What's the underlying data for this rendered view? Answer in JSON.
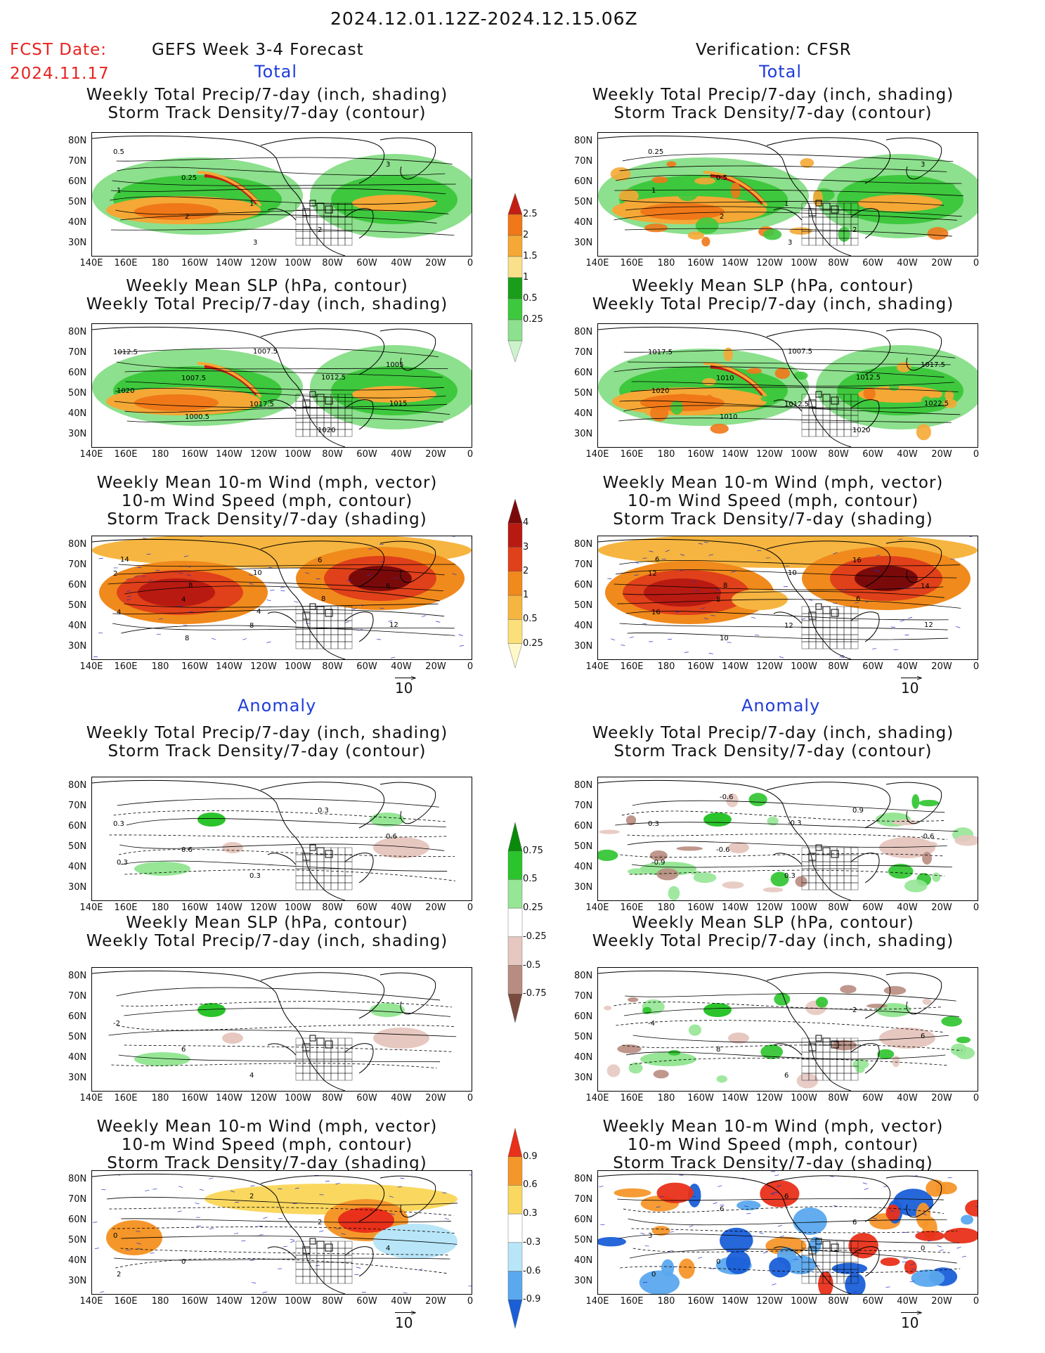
{
  "header": {
    "date_range": "2024.12.01.12Z-2024.12.15.06Z",
    "fcst_label": "FCST Date:",
    "fcst_date": "2024.11.17",
    "left_title": "GEFS Week 3-4 Forecast",
    "right_title": "Verification: CFSR",
    "total_label": "Total",
    "anomaly_label": "Anomaly"
  },
  "axes": {
    "y_labels": [
      "80N",
      "70N",
      "60N",
      "50N",
      "40N",
      "30N"
    ],
    "x_labels": [
      "140E",
      "160E",
      "180",
      "160W",
      "140W",
      "120W",
      "100W",
      "80W",
      "60W",
      "40W",
      "20W",
      "0"
    ]
  },
  "panels": {
    "p1": {
      "line1": "Weekly Total Precip/7-day (inch, shading)",
      "line2": "Storm Track Density/7-day (contour)",
      "line3": ""
    },
    "p2": {
      "line1": "Weekly Mean SLP (hPa, contour)",
      "line2": "Weekly Total Precip/7-day (inch, shading)",
      "line3": ""
    },
    "p3": {
      "line1": "Weekly Mean 10-m Wind (mph, vector)",
      "line2": "10-m Wind Speed (mph, contour)",
      "line3": "Storm Track Density/7-day (shading)"
    }
  },
  "contour_labels": {
    "fl1": [
      "0.5",
      "0.25",
      "1",
      "2",
      "3",
      "1",
      "2",
      "3"
    ],
    "vl1": [
      "0.25",
      "0.5",
      "1",
      "2",
      "3",
      "1",
      "2",
      "3"
    ],
    "fl2": [
      "1012.5",
      "1007.5",
      "1017.5",
      "1020",
      "1005",
      "1020",
      "1000.5",
      "1007.5",
      "1012.5",
      "1015"
    ],
    "vl2": [
      "1017.5",
      "1010",
      "1012.5",
      "1020",
      "1017.5",
      "1020",
      "1010",
      "1007.5",
      "1012.5",
      "1022.5"
    ],
    "fl3": [
      "2",
      "4",
      "8",
      "6",
      "6",
      "4",
      "8",
      "10",
      "8",
      "12",
      "14",
      "8",
      "4"
    ],
    "vl3": [
      "12",
      "8",
      "12",
      "16",
      "14",
      "16",
      "10",
      "10",
      "6",
      "12",
      "6",
      "8"
    ],
    "fa1": [
      "0.3",
      "0.6",
      "0.3",
      "0.3",
      "0.6",
      "0.3"
    ],
    "va1": [
      "0.3",
      "-0.6",
      "0.3",
      "0.9",
      "-0.6",
      "-0.9",
      "-0.6",
      "-0.3"
    ],
    "fa2": [
      "-2",
      "6",
      "4"
    ],
    "va2": [
      "-4",
      "8",
      "6",
      "2",
      "6"
    ],
    "fa3": [
      "0",
      "0",
      "2",
      "2",
      "4",
      "2"
    ],
    "va3": [
      "3",
      "0",
      "6",
      "6",
      "0",
      "0",
      "6"
    ]
  },
  "colorbars": {
    "precip": [
      "2.5",
      "2",
      "1.5",
      "1",
      "0.5",
      "0.25"
    ],
    "precip_colors": [
      "#c41e14",
      "#f07818",
      "#f5a835",
      "#fae08a",
      "#1a9e1a",
      "#3ec83e",
      "#8de08d",
      "#cdf3cd"
    ],
    "storm": [
      "4",
      "3",
      "2",
      "1",
      "0.5",
      "0.25"
    ],
    "storm_colors": [
      "#7a0a0a",
      "#b81a12",
      "#e0401a",
      "#f08a1c",
      "#f6b540",
      "#fbe07a",
      "#fff8c8"
    ],
    "precip_anom": [
      "0.75",
      "0.5",
      "0.25",
      "-0.25",
      "-0.5",
      "-0.75"
    ],
    "precip_anom_colors": [
      "#0a8a0a",
      "#2cc42c",
      "#96e696",
      "#ffffff",
      "#e6c8c0",
      "#b88c80",
      "#7a4a3e"
    ],
    "storm_anom": [
      "0.9",
      "0.6",
      "0.3",
      "-0.3",
      "-0.6",
      "-0.9"
    ],
    "storm_anom_colors": [
      "#e8301a",
      "#f5962a",
      "#fad860",
      "#ffffff",
      "#b8e6f8",
      "#5aa8ee",
      "#1a5fd8"
    ]
  },
  "vector_ref": "10"
}
